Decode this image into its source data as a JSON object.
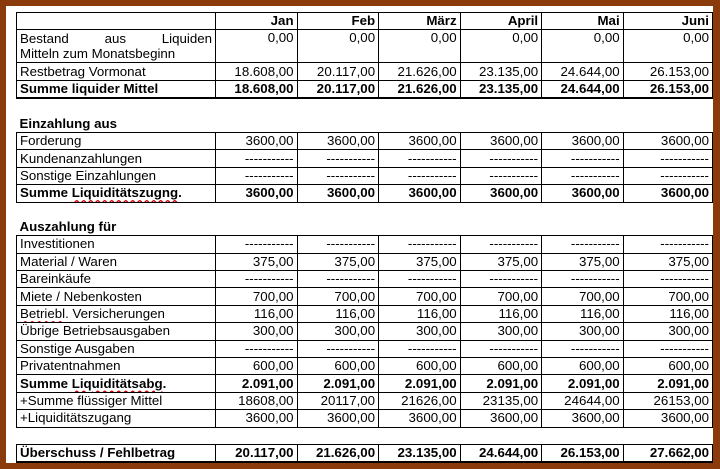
{
  "header": [
    "",
    "Jan",
    "Feb",
    "März",
    "April",
    "Mai",
    "Juni"
  ],
  "rows": [
    {
      "type": "box",
      "label": "Bestand aus Liquiden",
      "values": [
        "0,00",
        "0,00",
        "0,00",
        "0,00",
        "0,00",
        "0,00"
      ],
      "justify": true,
      "tall": true,
      "label2": "Mitteln zum Monatsbeginn"
    },
    {
      "type": "box",
      "label": "Restbetrag Vormonat",
      "values": [
        "18.608,00",
        "20.117,00",
        "21.626,00",
        "23.135,00",
        "24.644,00",
        "26.153,00"
      ]
    },
    {
      "type": "sum",
      "label": "Summe liquider Mittel",
      "values": [
        "18.608,00",
        "20.117,00",
        "21.626,00",
        "23.135,00",
        "24.644,00",
        "26.153,00"
      ]
    },
    {
      "type": "spacer"
    },
    {
      "type": "section",
      "label": "Einzahlung aus"
    },
    {
      "type": "box",
      "label": "Forderung",
      "values": [
        "3600,00",
        "3600,00",
        "3600,00",
        "3600,00",
        "3600,00",
        "3600,00"
      ]
    },
    {
      "type": "box",
      "label": "Kundenanzahlungen",
      "values": [
        "-----------",
        "-----------",
        "-----------",
        "-----------",
        "-----------",
        "-----------"
      ]
    },
    {
      "type": "box",
      "label": "Sonstige Einzahlungen",
      "values": [
        "-----------",
        "-----------",
        "-----------",
        "-----------",
        "-----------",
        "-----------"
      ]
    },
    {
      "type": "sumbox",
      "label": "Summe Liquiditätszugng.",
      "uline": "Liquiditätszugng",
      "values": [
        "3600,00",
        "3600,00",
        "3600,00",
        "3600,00",
        "3600,00",
        "3600,00"
      ]
    },
    {
      "type": "spacer"
    },
    {
      "type": "section",
      "label": "Auszahlung für"
    },
    {
      "type": "box",
      "label": "Investitionen",
      "values": [
        "-----------",
        "-----------",
        "-----------",
        "-----------",
        "-----------",
        "-----------"
      ]
    },
    {
      "type": "box",
      "label": "Material / Waren",
      "values": [
        "375,00",
        "375,00",
        "375,00",
        "375,00",
        "375,00",
        "375,00"
      ]
    },
    {
      "type": "box",
      "label": "Bareinkäufe",
      "values": [
        "-----------",
        "-----------",
        "-----------",
        "-----------",
        "-----------",
        "-----------"
      ]
    },
    {
      "type": "box",
      "label": "Miete / Nebenkosten",
      "values": [
        "700,00",
        "700,00",
        "700,00",
        "700,00",
        "700,00",
        "700,00"
      ]
    },
    {
      "type": "box",
      "label": "Betriebl. Versicherungen",
      "uline": "Betriebl",
      "values": [
        "116,00",
        "116,00",
        "116,00",
        "116,00",
        "116,00",
        "116,00"
      ]
    },
    {
      "type": "box",
      "label": "Übrige Betriebsausgaben",
      "values": [
        "300,00",
        "300,00",
        "300,00",
        "300,00",
        "300,00",
        "300,00"
      ]
    },
    {
      "type": "box",
      "label": "Sonstige Ausgaben",
      "values": [
        "-----------",
        "-----------",
        "-----------",
        "-----------",
        "-----------",
        "-----------"
      ]
    },
    {
      "type": "box",
      "label": "Privatentnahmen",
      "values": [
        "600,00",
        "600,00",
        "600,00",
        "600,00",
        "600,00",
        "600,00"
      ]
    },
    {
      "type": "sumbox",
      "label": "Summe Liquiditätsabg.",
      "uline": "Liquiditätsabg",
      "values": [
        "2.091,00",
        "2.091,00",
        "2.091,00",
        "2.091,00",
        "2.091,00",
        "2.091,00"
      ]
    },
    {
      "type": "box",
      "label": "+Summe flüssiger Mittel",
      "values": [
        "18608,00",
        "20117,00",
        "21626,00",
        "23135,00",
        "24644,00",
        "26153,00"
      ]
    },
    {
      "type": "box",
      "label": "+Liquiditätszugang",
      "values": [
        "3600,00",
        "3600,00",
        "3600,00",
        "3600,00",
        "3600,00",
        "3600,00"
      ]
    },
    {
      "type": "spacer"
    },
    {
      "type": "sum",
      "label": "Überschuss / Fehlbetrag",
      "values": [
        "20.117,00",
        "21.626,00",
        "23.135,00",
        "24.644,00",
        "26.153,00",
        "27.662,00"
      ]
    }
  ]
}
